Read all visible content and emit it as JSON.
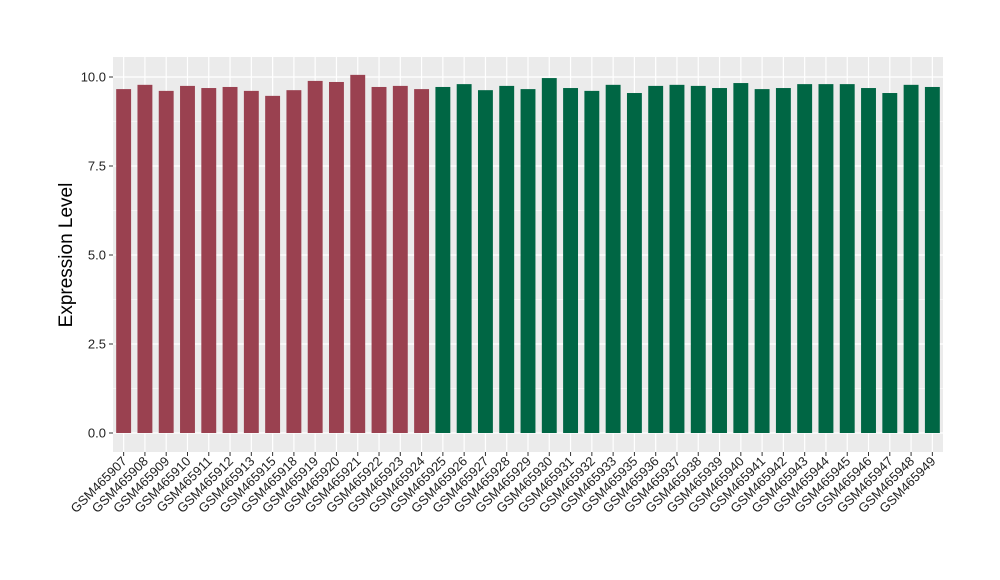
{
  "chart_data": {
    "type": "bar",
    "title": "",
    "xlabel": "",
    "ylabel": "Expression Level",
    "ylim": [
      -0.55,
      10.5
    ],
    "yticks": [
      "0.0",
      "2.5",
      "5.0",
      "7.5",
      "10.0"
    ],
    "ytick_values": [
      0,
      2.5,
      5,
      7.5,
      10
    ],
    "grid": true,
    "colors": {
      "group1": "#9A4150",
      "group2": "#006644",
      "panel": "#EBEBEB",
      "gridline": "#FFFFFF"
    },
    "categories": [
      "GSM465907",
      "GSM465908",
      "GSM465909",
      "GSM465910",
      "GSM465911",
      "GSM465912",
      "GSM465913",
      "GSM465915",
      "GSM465918",
      "GSM465919",
      "GSM465920",
      "GSM465921",
      "GSM465922",
      "GSM465923",
      "GSM465924",
      "GSM465925",
      "GSM465926",
      "GSM465927",
      "GSM465928",
      "GSM465929",
      "GSM465930",
      "GSM465931",
      "GSM465932",
      "GSM465933",
      "GSM465935",
      "GSM465936",
      "GSM465937",
      "GSM465938",
      "GSM465939",
      "GSM465940",
      "GSM465941",
      "GSM465942",
      "GSM465943",
      "GSM465944",
      "GSM465945",
      "GSM465946",
      "GSM465947",
      "GSM465948",
      "GSM465949"
    ],
    "values": [
      9.66,
      9.78,
      9.61,
      9.75,
      9.69,
      9.72,
      9.61,
      9.47,
      9.63,
      9.89,
      9.86,
      10.06,
      9.72,
      9.75,
      9.66,
      9.72,
      9.8,
      9.63,
      9.75,
      9.66,
      9.97,
      9.69,
      9.61,
      9.78,
      9.55,
      9.75,
      9.78,
      9.75,
      9.69,
      9.83,
      9.66,
      9.69,
      9.8,
      9.8,
      9.8,
      9.69,
      9.55,
      9.78,
      9.72
    ],
    "groups": [
      1,
      1,
      1,
      1,
      1,
      1,
      1,
      1,
      1,
      1,
      1,
      1,
      1,
      1,
      1,
      2,
      2,
      2,
      2,
      2,
      2,
      2,
      2,
      2,
      2,
      2,
      2,
      2,
      2,
      2,
      2,
      2,
      2,
      2,
      2,
      2,
      2,
      2,
      2
    ]
  }
}
